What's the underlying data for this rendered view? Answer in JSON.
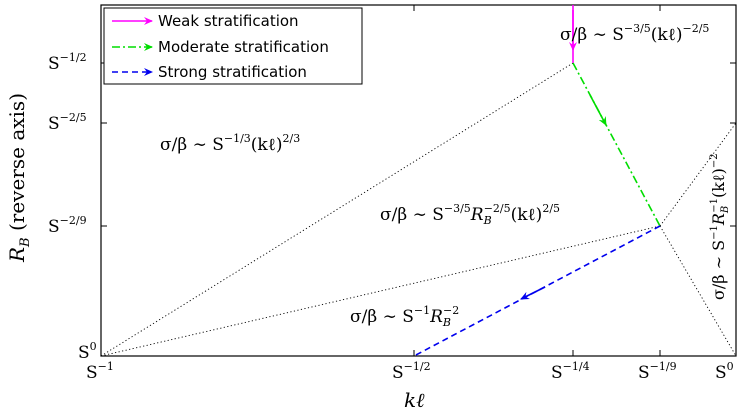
{
  "axes": {
    "xlabel": "kℓ",
    "ylabel_main": "R",
    "ylabel_sub": "B",
    "ylabel_rest": " (reverse axis)",
    "x_ticks": [
      {
        "base": "S",
        "exp": "−1"
      },
      {
        "base": "S",
        "exp": "−1/2"
      },
      {
        "base": "S",
        "exp": "−1/4"
      },
      {
        "base": "S",
        "exp": "−1/9"
      },
      {
        "base": "S",
        "exp": "0"
      }
    ],
    "y_ticks": [
      {
        "base": "S",
        "exp": "−1/2"
      },
      {
        "base": "S",
        "exp": "−2/5"
      },
      {
        "base": "S",
        "exp": "−2/9"
      },
      {
        "base": "S",
        "exp": "0"
      }
    ]
  },
  "legend": [
    {
      "label": "Weak stratification",
      "color": "#ff00ff"
    },
    {
      "label": "Moderate stratification",
      "color": "#00dd00"
    },
    {
      "label": "Strong stratification",
      "color": "#0000ee"
    }
  ],
  "regime_labels": {
    "top_right": {
      "pre": "σ/β ∼ S",
      "exp1": "−3/5",
      "mid": "(kℓ)",
      "exp2": "−2/5"
    },
    "left": {
      "pre": "σ/β ∼ S",
      "exp1": "−1/3",
      "mid": "(kℓ)",
      "exp2": "2/3"
    },
    "center": {
      "pre": "σ/β ∼ S",
      "exp1": "−3/5",
      "mid": "R",
      "sub": "B",
      "exp2": "−2/5",
      "post": "(kℓ)",
      "exp3": "2/5"
    },
    "bottom": {
      "pre": "σ/β ∼ S",
      "exp1": "−1",
      "mid": "R",
      "sub": "B",
      "exp2": "−2"
    },
    "right_vertical": {
      "pre": "σ/β ∼ S",
      "exp1": "−1",
      "mid": "R",
      "sub": "B",
      "exp2": "−1",
      "post": "(kℓ)",
      "exp3": "−2"
    }
  },
  "colors": {
    "weak": "#ff00ff",
    "moderate": "#00dd00",
    "strong": "#0000ee",
    "frame": "#000000",
    "dotted": "#000000"
  }
}
